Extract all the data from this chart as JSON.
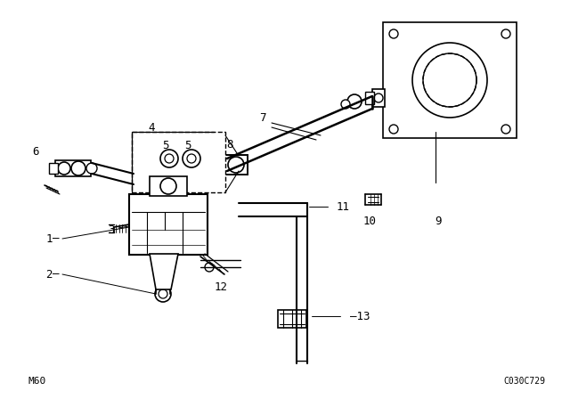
{
  "bg_color": "#ffffff",
  "line_color": "#000000",
  "bottom_left_text": "M60",
  "bottom_right_text": "C030C729",
  "fig_width": 6.4,
  "fig_height": 4.48,
  "dpi": 100
}
